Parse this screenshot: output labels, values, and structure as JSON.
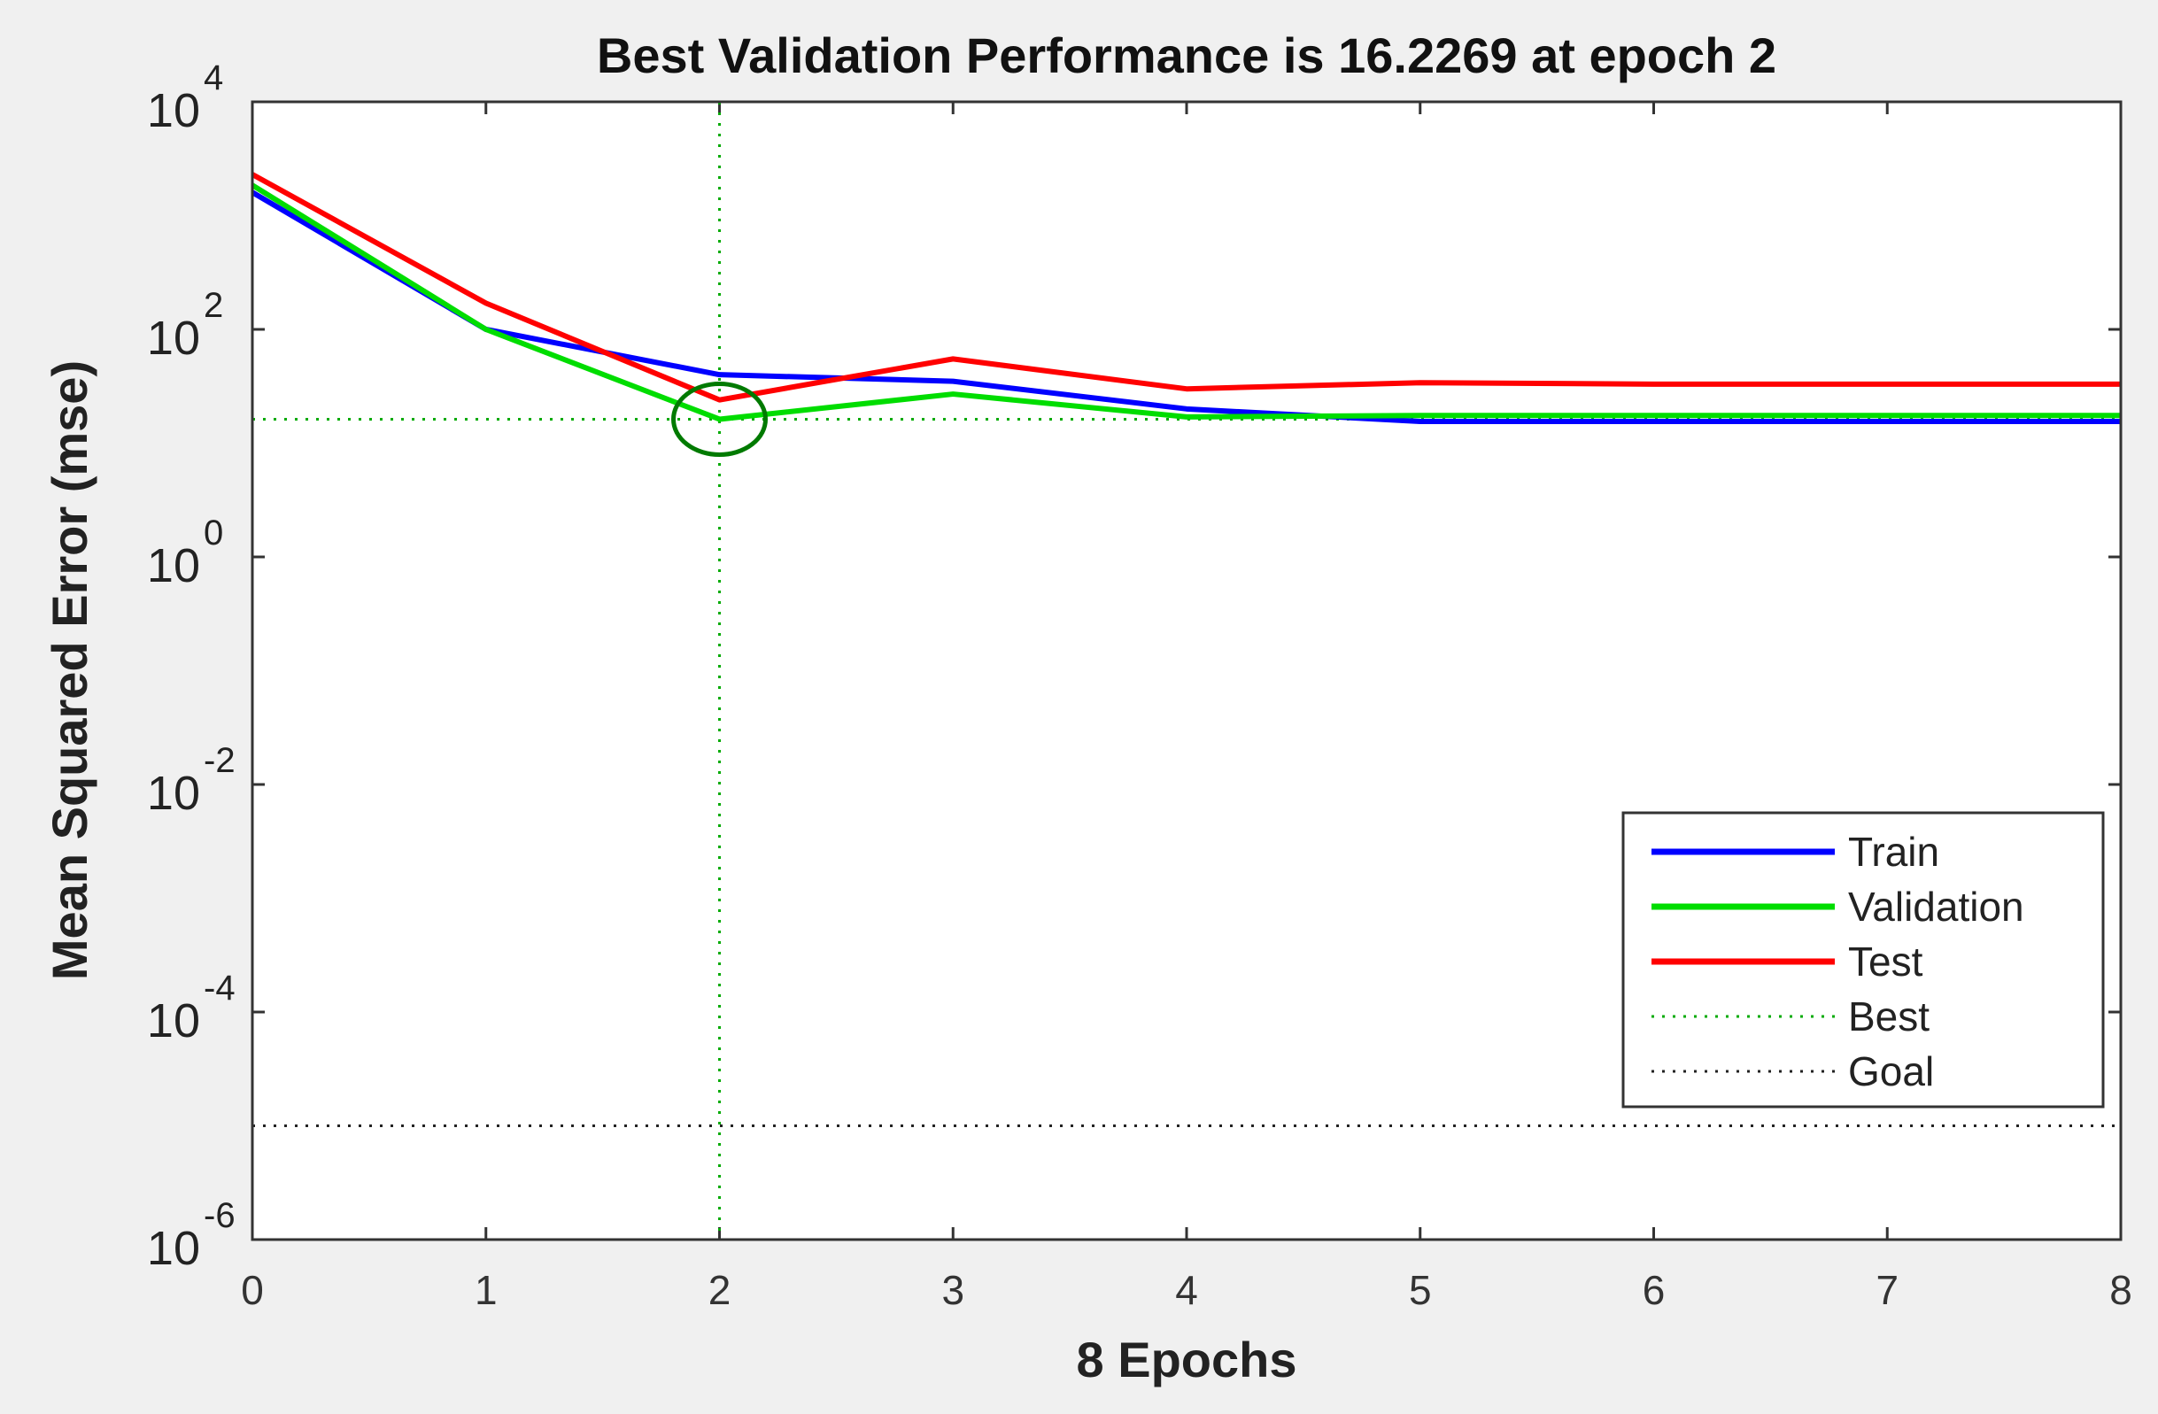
{
  "chart_data": {
    "type": "line",
    "title": "Best Validation Performance is 16.2269 at epoch 2",
    "xlabel": "8 Epochs",
    "ylabel": "Mean Squared Error  (mse)",
    "y_scale": "log",
    "xlim": [
      0,
      8
    ],
    "ylim": [
      1e-06,
      10000
    ],
    "x_ticks": [
      "0",
      "1",
      "2",
      "3",
      "4",
      "5",
      "6",
      "7",
      "8"
    ],
    "y_ticks": [
      {
        "base": "10",
        "exp": "4",
        "value": 10000
      },
      {
        "base": "10",
        "exp": "2",
        "value": 100
      },
      {
        "base": "10",
        "exp": "0",
        "value": 1
      },
      {
        "base": "10",
        "exp": "-2",
        "value": 0.01
      },
      {
        "base": "10",
        "exp": "-4",
        "value": 0.0001
      },
      {
        "base": "10",
        "exp": "-6",
        "value": 1e-06
      }
    ],
    "x": [
      0,
      1,
      2,
      3,
      4,
      5,
      6,
      7,
      8
    ],
    "series": [
      {
        "name": "Train",
        "color": "#0000ff",
        "style": "solid",
        "values": [
          1600,
          100,
          40,
          35,
          20,
          15.5,
          15.5,
          15.5,
          15.5
        ]
      },
      {
        "name": "Validation",
        "color": "#00dd00",
        "style": "solid",
        "values": [
          1850,
          100,
          16.2269,
          27,
          17,
          17.5,
          17.5,
          17.5,
          17.5
        ]
      },
      {
        "name": "Test",
        "color": "#ff0000",
        "style": "solid",
        "values": [
          2300,
          170,
          24,
          55,
          30,
          34,
          33,
          33,
          33
        ]
      }
    ],
    "best": {
      "name": "Best",
      "epoch": 2,
      "value": 16.2269,
      "color": "#00aa00",
      "style": "dotted",
      "marker": "circle"
    },
    "goal": {
      "name": "Goal",
      "value": 1e-05,
      "color": "#222222",
      "style": "dotted"
    },
    "legend_position": "bottom-right",
    "grid": false
  }
}
